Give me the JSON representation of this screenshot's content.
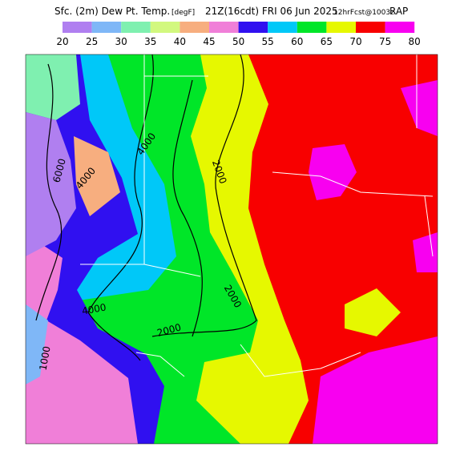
{
  "title_parts": [
    "Sfc. (2m) Dew Pt. Temp.",
    "[degF]",
    "21Z(16cdt) FRI 06 Jun 2025",
    "12hrFcst@1003z",
    "RAP"
  ],
  "colorbar": {
    "ticks": [
      20,
      25,
      30,
      35,
      40,
      45,
      50,
      55,
      60,
      65,
      70,
      75,
      80
    ],
    "colors": [
      "#b07ff0",
      "#7fb7f7",
      "#7ff0b0",
      "#d2f87f",
      "#f7ae7f",
      "#f07fd8",
      "#3010f0",
      "#00c8f8",
      "#00e628",
      "#e6f800",
      "#f80000",
      "#f800f0"
    ]
  },
  "contour_labels": [
    "6000",
    "4000",
    "4000",
    "2000",
    "2000",
    "4000",
    "2000",
    "1000"
  ]
}
